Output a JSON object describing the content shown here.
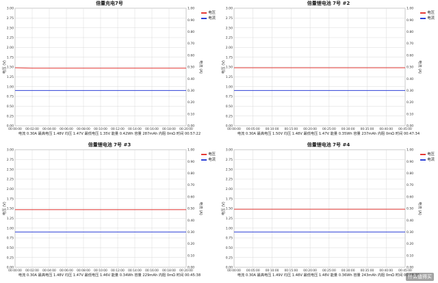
{
  "colors": {
    "voltage": "#e53935",
    "current": "#2b3fd6",
    "grid": "#d9d9d9",
    "axis": "#888888"
  },
  "legend": {
    "voltage": "电压",
    "current": "电流"
  },
  "ylabel_left": "电压 (V)",
  "ylabel_right": "电流 (A)",
  "watermark": "什么值得买",
  "chart_data": [
    {
      "type": "line",
      "title": "倍量充电7号",
      "info": "电流 0.30A 最高电压 1.48V 均压 1.47V 最低电压 1.35V 能量 0.42Wh 容量 287mAh 内阻 0mΩ 时间 00:57:22",
      "ylim_left": [
        0,
        3
      ],
      "ylim_right": [
        0,
        1
      ],
      "yticks_left": [
        "0.00",
        "0.25",
        "0.50",
        "0.75",
        "1.00",
        "1.25",
        "1.50",
        "1.75",
        "2.00",
        "2.25",
        "2.50",
        "2.75",
        "3.00"
      ],
      "yticks_right": [
        "0.00",
        "0.10",
        "0.20",
        "0.30",
        "0.40",
        "0.50",
        "0.60",
        "0.70",
        "0.80",
        "0.90",
        "1.00"
      ],
      "xticks": [
        "00:00:00",
        "00:02:00",
        "00:04:00",
        "00:06:00",
        "00:08:00",
        "00:10:00",
        "00:12:00",
        "00:14:00",
        "00:16:00",
        "00:18:00",
        "00:20:00"
      ],
      "series": [
        {
          "name": "电压",
          "axis": "left",
          "values": [
            1.48,
            1.47,
            1.47,
            1.47,
            1.47,
            1.47,
            1.47,
            1.47,
            1.47,
            1.47,
            1.47
          ]
        },
        {
          "name": "电流",
          "axis": "right",
          "values": [
            0.3,
            0.3,
            0.3,
            0.3,
            0.3,
            0.3,
            0.3,
            0.3,
            0.3,
            0.3,
            0.3
          ]
        }
      ]
    },
    {
      "type": "line",
      "title": "倍量锂电池 7号 #2",
      "info": "电流 0.30A 最高电压 1.50V 均压 1.48V 最低电压 1.47V 能量 0.35Wh 容量 237mAh 内阻 0mΩ 时间 00:47:34",
      "ylim_left": [
        0,
        3
      ],
      "ylim_right": [
        0,
        1
      ],
      "yticks_left": [
        "0.00",
        "0.25",
        "0.50",
        "0.75",
        "1.00",
        "1.25",
        "1.50",
        "1.75",
        "2.00",
        "2.25",
        "2.50",
        "2.75",
        "3.00"
      ],
      "yticks_right": [
        "0.00",
        "0.10",
        "0.20",
        "0.30",
        "0.40",
        "0.50",
        "0.60",
        "0.70",
        "0.80",
        "0.90",
        "1.00"
      ],
      "xticks": [
        "00:00:00",
        "00:05:00",
        "00:10:00",
        "00:15:00",
        "00:20:00",
        "00:25:00",
        "00:30:00",
        "00:35:00",
        "00:40:00",
        "00:45:00"
      ],
      "series": [
        {
          "name": "电压",
          "axis": "left",
          "values": [
            1.48,
            1.48,
            1.48,
            1.48,
            1.48,
            1.48,
            1.48,
            1.48,
            1.48,
            1.48
          ]
        },
        {
          "name": "电流",
          "axis": "right",
          "values": [
            0.3,
            0.3,
            0.3,
            0.3,
            0.3,
            0.3,
            0.3,
            0.3,
            0.3,
            0.3
          ]
        }
      ]
    },
    {
      "type": "line",
      "title": "倍量锂电池 7号 #3",
      "info": "电流 0.30A 最高电压 1.48V 均压 1.47V 最低电压 1.46V 能量 0.34Wh 容量 229mAh 内阻 0mΩ 时间 00:45:38",
      "ylim_left": [
        0,
        3
      ],
      "ylim_right": [
        0,
        1
      ],
      "yticks_left": [
        "0.00",
        "0.25",
        "0.50",
        "0.75",
        "1.00",
        "1.25",
        "1.50",
        "1.75",
        "2.00",
        "2.25",
        "2.50",
        "2.75",
        "3.00"
      ],
      "yticks_right": [
        "0.00",
        "0.10",
        "0.20",
        "0.30",
        "0.40",
        "0.50",
        "0.60",
        "0.70",
        "0.80",
        "0.90",
        "1.00"
      ],
      "xticks": [
        "00:00:00",
        "00:02:00",
        "00:04:00",
        "00:06:00",
        "00:08:00",
        "00:10:00",
        "00:12:00",
        "00:14:00",
        "00:16:00",
        "00:18:00",
        "00:20:00"
      ],
      "series": [
        {
          "name": "电压",
          "axis": "left",
          "values": [
            1.47,
            1.47,
            1.47,
            1.47,
            1.47,
            1.47,
            1.47,
            1.47,
            1.47,
            1.47,
            1.47
          ]
        },
        {
          "name": "电流",
          "axis": "right",
          "values": [
            0.3,
            0.3,
            0.3,
            0.3,
            0.3,
            0.3,
            0.3,
            0.3,
            0.3,
            0.3,
            0.3
          ]
        }
      ]
    },
    {
      "type": "line",
      "title": "倍量锂电池 7号 #4",
      "info": "电流 0.30A 最高电压 1.49V 均压 1.48V 最低电压 1.48V 能量 0.36Wh 容量 243mAh 内阻 0mΩ 时间 00:48:35",
      "ylim_left": [
        0,
        3
      ],
      "ylim_right": [
        0,
        1
      ],
      "yticks_left": [
        "0.00",
        "0.25",
        "0.50",
        "0.75",
        "1.00",
        "1.25",
        "1.50",
        "1.75",
        "2.00",
        "2.25",
        "2.50",
        "2.75",
        "3.00"
      ],
      "yticks_right": [
        "0.00",
        "0.10",
        "0.20",
        "0.30",
        "0.40",
        "0.50",
        "0.60",
        "0.70",
        "0.80",
        "0.90",
        "1.00"
      ],
      "xticks": [
        "00:00:00",
        "00:05:00",
        "00:10:00",
        "00:15:00",
        "00:20:00",
        "00:25:00",
        "00:30:00",
        "00:35:00",
        "00:40:00",
        "00:45:00"
      ],
      "series": [
        {
          "name": "电压",
          "axis": "left",
          "values": [
            1.48,
            1.48,
            1.48,
            1.48,
            1.48,
            1.48,
            1.48,
            1.48,
            1.48,
            1.48
          ]
        },
        {
          "name": "电流",
          "axis": "right",
          "values": [
            0.3,
            0.3,
            0.3,
            0.3,
            0.3,
            0.3,
            0.3,
            0.3,
            0.3,
            0.3
          ]
        }
      ]
    }
  ]
}
